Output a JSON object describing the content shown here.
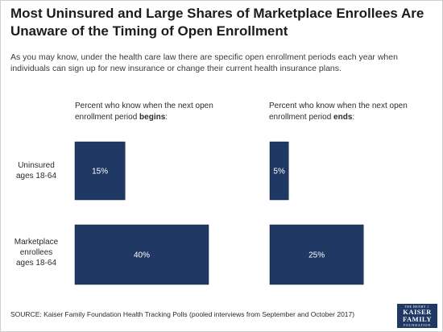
{
  "title": "Most Uninsured and Large Shares of Marketplace Enrollees Are Unaware of the Timing of Open Enrollment",
  "subtitle": "As you may know, under the health care law there are specific open enrollment periods each year when individuals can sign up for new insurance or change their current health insurance plans.",
  "source": "SOURCE: Kaiser Family Foundation Health Tracking Polls (pooled interviews from September and October 2017)",
  "logo": {
    "line1": "THE HENRY J.",
    "line2": "KAISER",
    "line3": "FAMILY",
    "line4": "FOUNDATION"
  },
  "colors": {
    "bar": "#1f3864",
    "bar_label": "#ffffff"
  },
  "chart_data": [
    {
      "type": "bar",
      "orientation": "horizontal",
      "title_prefix": "Percent who know when the next open enrollment period ",
      "title_emphasis": "begins",
      "title_suffix": ":",
      "categories": [
        "Uninsured ages 18-64",
        "Marketplace enrollees ages 18-64"
      ],
      "category_lines": [
        [
          "Uninsured",
          "ages 18-64"
        ],
        [
          "Marketplace",
          "enrollees",
          "ages 18-64"
        ]
      ],
      "values": [
        15,
        40
      ],
      "value_labels": [
        "15%",
        "40%"
      ],
      "unit": "%"
    },
    {
      "type": "bar",
      "orientation": "horizontal",
      "title_prefix": "Percent who know when the next open enrollment period ",
      "title_emphasis": "ends",
      "title_suffix": ":",
      "categories": [
        "Uninsured ages 18-64",
        "Marketplace enrollees ages 18-64"
      ],
      "values": [
        5,
        25
      ],
      "value_labels": [
        "5%",
        "25%"
      ],
      "unit": "%"
    }
  ]
}
